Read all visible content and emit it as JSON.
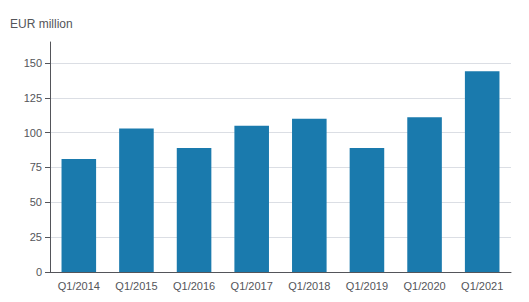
{
  "chart_data": {
    "type": "bar",
    "ylabel": "EUR million",
    "categories": [
      "Q1/2014",
      "Q1/2015",
      "Q1/2016",
      "Q1/2017",
      "Q1/2018",
      "Q1/2019",
      "Q1/2020",
      "Q1/2021"
    ],
    "values": [
      81,
      103,
      89,
      105,
      110,
      89,
      111,
      144
    ],
    "color": "#1a7aad",
    "ylim": [
      0,
      165
    ],
    "yticks": [
      0,
      25,
      50,
      75,
      100,
      125,
      150
    ],
    "grid": true
  }
}
